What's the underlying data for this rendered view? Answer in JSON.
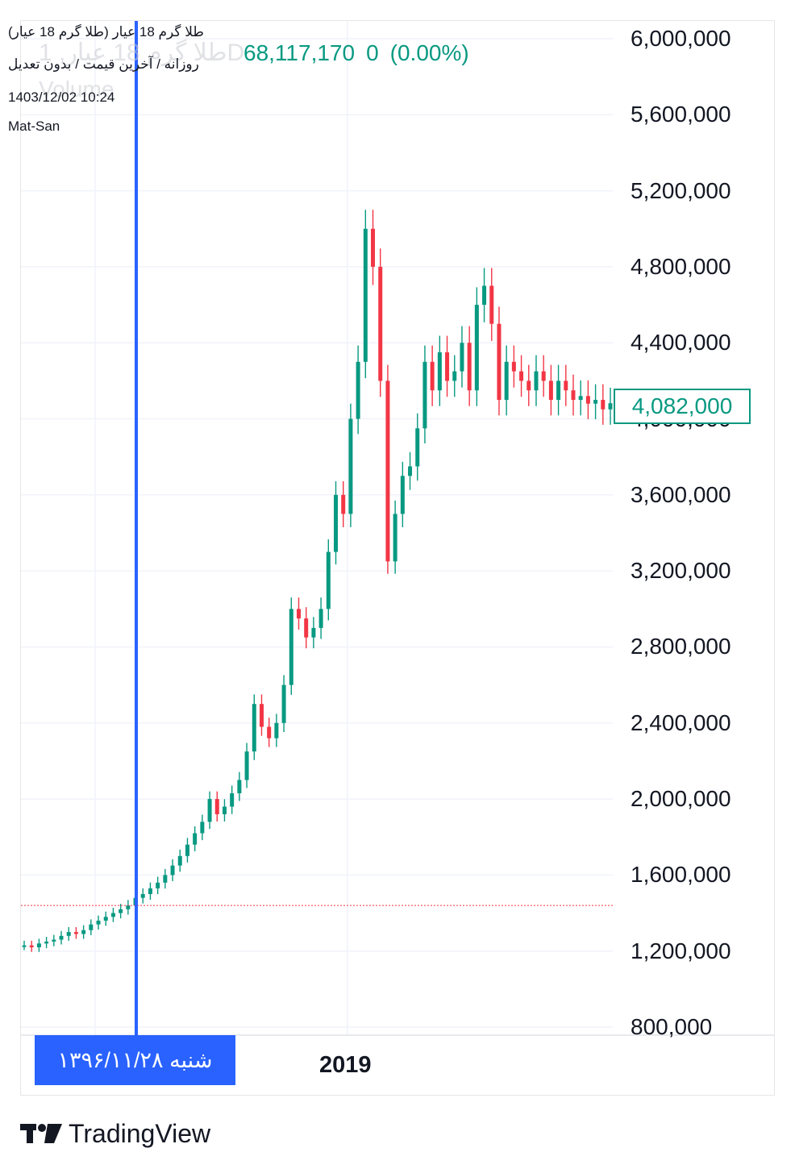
{
  "header": {
    "title": "طلا گرم 18 عیار (طلا گرم 18 عیار)",
    "subtitle": "روزانه / آخرین قیمت / بدون تعدیل",
    "datetime": "1403/12/02 10:24",
    "source": "Mat-San",
    "ghost_symbol": "طلا گرم 18 عیار, 1D",
    "ghost_volume": "Volume"
  },
  "quote": {
    "last": "68,117,170",
    "change": "0",
    "change_pct": "(0.00%)"
  },
  "crosshair": {
    "date_label": "شنبه ۱۳۹۶/۱۱/۲۸",
    "price": 1440000
  },
  "last_price_label": "4,082,000",
  "x_axis": {
    "label": "2019"
  },
  "brand": {
    "name": "TradingView"
  },
  "colors": {
    "up": "#089981",
    "down": "#f23645",
    "crosshair": "#2962ff",
    "grid": "#f0f3fa"
  },
  "chart_data": {
    "type": "line",
    "title": "",
    "xlabel": "",
    "ylabel": "",
    "ylim": [
      800000,
      6000000
    ],
    "y_ticks": [
      "6,000,000",
      "5,600,000",
      "5,200,000",
      "4,800,000",
      "4,400,000",
      "4,000,000",
      "3,600,000",
      "3,200,000",
      "2,800,000",
      "2,400,000",
      "2,000,000",
      "1,600,000",
      "1,200,000",
      "800,000"
    ],
    "y_tick_values": [
      6000000,
      5600000,
      5200000,
      4800000,
      4400000,
      4000000,
      3600000,
      3200000,
      2800000,
      2400000,
      2000000,
      1600000,
      1200000,
      800000
    ],
    "last_price": 4082000,
    "x_tick": "2019",
    "series": [
      {
        "values": [
          1230000,
          1220000,
          1240000,
          1250000,
          1260000,
          1280000,
          1300000,
          1290000,
          1310000,
          1340000,
          1360000,
          1380000,
          1400000,
          1420000,
          1440000,
          1480000,
          1500000,
          1530000,
          1560000,
          1600000,
          1650000,
          1700000,
          1760000,
          1820000,
          1880000,
          2000000,
          1920000,
          1960000,
          2030000,
          2100000,
          2250000,
          2500000,
          2380000,
          2320000,
          2400000,
          2600000,
          3000000,
          2950000,
          2850000,
          2900000,
          3000000,
          3300000,
          3600000,
          3500000,
          4000000,
          4300000,
          5000000,
          4800000,
          4200000,
          3250000,
          3500000,
          3700000,
          3750000,
          3950000,
          4300000,
          4150000,
          4350000,
          4200000,
          4250000,
          4400000,
          4150000,
          4600000,
          4700000,
          4500000,
          4100000,
          4300000,
          4250000,
          4200000,
          4150000,
          4250000,
          4200000,
          4100000,
          4200000,
          4150000,
          4100000,
          4120000,
          4080000,
          4100000,
          4050000,
          4082000
        ]
      }
    ]
  }
}
